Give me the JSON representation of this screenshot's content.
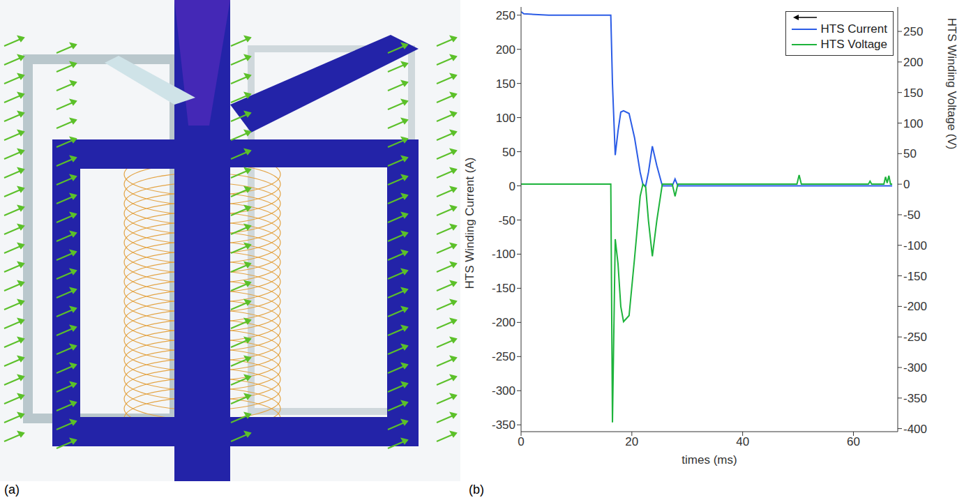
{
  "panel_a": {
    "label": "(a)"
  },
  "chart_data": {
    "type": "line",
    "panel_label": "(b)",
    "x_label": "times (ms)",
    "y_label": "HTS Winding Current (A)",
    "y2_label": "HTS Winding Voltage (V)",
    "x": [
      0,
      0.5,
      5,
      10,
      15,
      16.2,
      16.5,
      17,
      17.5,
      18,
      18.5,
      19.5,
      20.5,
      21.5,
      22,
      22.5,
      23,
      23.7,
      24.5,
      25.5,
      27.3,
      27.8,
      28.3,
      30,
      40,
      49.8,
      50.2,
      50.6,
      55,
      62.7,
      63,
      63.3,
      65.5,
      65.8,
      66.1,
      66.4,
      66.7,
      67
    ],
    "series": [
      {
        "name": "HTS Current",
        "color": "#2b5ce6",
        "values": [
          255,
          252,
          250,
          250,
          250,
          250,
          150,
          45,
          80,
          108,
          110,
          106,
          70,
          20,
          2,
          0,
          20,
          58,
          30,
          0,
          0,
          10,
          0,
          0,
          0,
          0,
          0,
          0,
          0,
          0,
          0,
          0,
          0,
          0,
          0,
          0,
          0,
          0
        ]
      },
      {
        "name": "HTS Voltage",
        "color": "#1db33b",
        "axis": "y2",
        "values": [
          0,
          0,
          0,
          0,
          0,
          0,
          -390,
          -90,
          -130,
          -200,
          -225,
          -215,
          -120,
          -20,
          0,
          -5,
          -60,
          -118,
          -60,
          0,
          0,
          -20,
          0,
          0,
          0,
          0,
          15,
          0,
          0,
          0,
          5,
          0,
          0,
          12,
          2,
          14,
          0,
          0
        ]
      }
    ],
    "xlim": [
      0,
      68
    ],
    "xticks": [
      0,
      20,
      40,
      60
    ],
    "ylim": [
      -360,
      262
    ],
    "yticks": [
      -350,
      -300,
      -250,
      -200,
      -150,
      -100,
      -50,
      0,
      50,
      100,
      150,
      200,
      250
    ],
    "y2lim": [
      -405,
      290
    ],
    "y2ticks": [
      -400,
      -350,
      -300,
      -250,
      -200,
      -150,
      -100,
      -50,
      0,
      50,
      100,
      150,
      200,
      250
    ],
    "grid": false,
    "legend": "top-right"
  }
}
